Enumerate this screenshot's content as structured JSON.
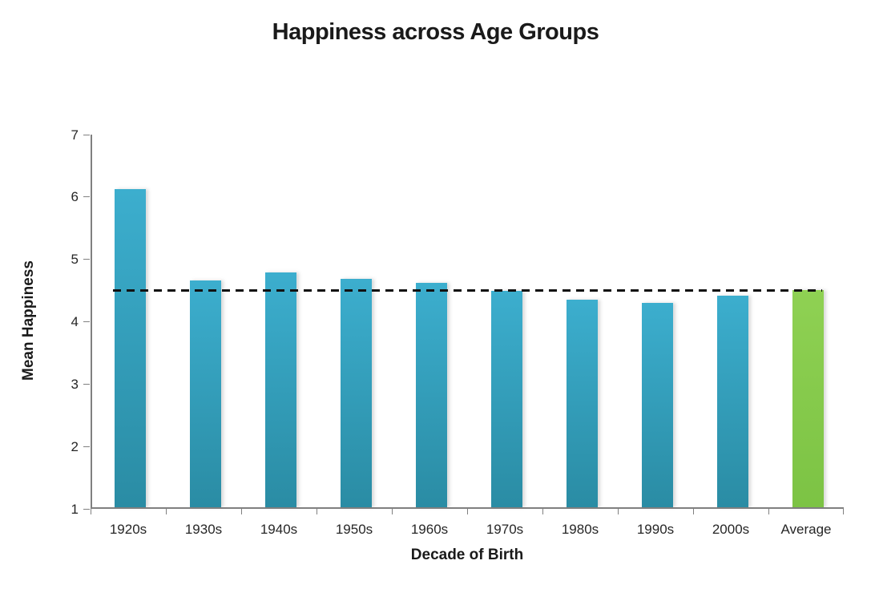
{
  "title": "Happiness across Age Groups",
  "colors": {
    "bar_gradient_top": "#3CAECE",
    "bar_gradient_bottom": "#2A8CA4",
    "highlight_gradient_top": "#8FD153",
    "highlight_gradient_bottom": "#7CC344",
    "axis": "#808080",
    "text": "#262626",
    "dashed_line": "#111111"
  },
  "chart_data": {
    "type": "bar",
    "title": "Happiness across Age Groups",
    "xlabel": "Decade of Birth",
    "ylabel": "Mean Happiness",
    "categories": [
      "1920s",
      "1930s",
      "1940s",
      "1950s",
      "1960s",
      "1970s",
      "1980s",
      "1990s",
      "2000s",
      "Average"
    ],
    "values": [
      6.1,
      4.64,
      4.77,
      4.66,
      4.6,
      4.47,
      4.33,
      4.28,
      4.39,
      4.48
    ],
    "highlight_category": "Average",
    "ylim": [
      1,
      7
    ],
    "yticks": [
      1,
      2,
      3,
      4,
      5,
      6,
      7
    ],
    "grid": false,
    "legend": "none",
    "average_line": {
      "value": 4.5,
      "style": "dashed"
    }
  }
}
